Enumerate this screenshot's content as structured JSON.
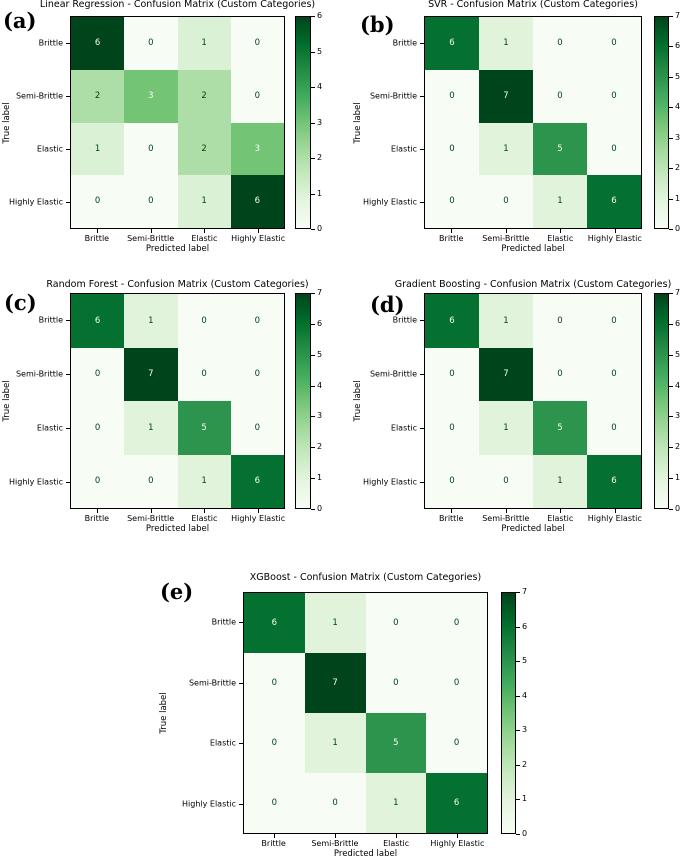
{
  "figure": {
    "description": "Confusion matrices for five regression/classification models with custom categories",
    "xlabel": "Predicted label",
    "ylabel": "True label",
    "categories": [
      "Brittle",
      "Semi-Brittle",
      "Elastic",
      "Highly Elastic"
    ]
  },
  "colors": {
    "colormap_name": "Greens",
    "colormap_anchors": [
      "#f7fcf5",
      "#e5f5e0",
      "#c7e9c0",
      "#a1d99b",
      "#74c476",
      "#41ab5d",
      "#238b45",
      "#006d2c",
      "#00441b"
    ],
    "cell_text_light": "#f7fcf5",
    "cell_text_dark": "#00441b",
    "axis_color": "#000000",
    "background": "#ffffff"
  },
  "chart_data": [
    {
      "type": "heatmap",
      "panel_letter": "(a)",
      "title": "Linear Regression - Confusion Matrix (Custom Categories)",
      "xlabel": "Predicted label",
      "ylabel": "True label",
      "categories": [
        "Brittle",
        "Semi-Brittle",
        "Elastic",
        "Highly Elastic"
      ],
      "matrix": [
        [
          6,
          0,
          1,
          0
        ],
        [
          2,
          3,
          2,
          0
        ],
        [
          1,
          0,
          2,
          3
        ],
        [
          0,
          0,
          1,
          6
        ]
      ],
      "vmin": 0,
      "vmax": 6,
      "colorbar_ticks": [
        0,
        1,
        2,
        3,
        4,
        5,
        6
      ]
    },
    {
      "type": "heatmap",
      "panel_letter": "(b)",
      "title": "SVR - Confusion Matrix (Custom Categories)",
      "xlabel": "Predicted label",
      "ylabel": "True label",
      "categories": [
        "Brittle",
        "Semi-Brittle",
        "Elastic",
        "Highly Elastic"
      ],
      "matrix": [
        [
          6,
          1,
          0,
          0
        ],
        [
          0,
          7,
          0,
          0
        ],
        [
          0,
          1,
          5,
          0
        ],
        [
          0,
          0,
          1,
          6
        ]
      ],
      "vmin": 0,
      "vmax": 7,
      "colorbar_ticks": [
        0,
        1,
        2,
        3,
        4,
        5,
        6,
        7
      ]
    },
    {
      "type": "heatmap",
      "panel_letter": "(c)",
      "title": "Random Forest - Confusion Matrix (Custom Categories)",
      "xlabel": "Predicted label",
      "ylabel": "True label",
      "categories": [
        "Brittle",
        "Semi-Brittle",
        "Elastic",
        "Highly Elastic"
      ],
      "matrix": [
        [
          6,
          1,
          0,
          0
        ],
        [
          0,
          7,
          0,
          0
        ],
        [
          0,
          1,
          5,
          0
        ],
        [
          0,
          0,
          1,
          6
        ]
      ],
      "vmin": 0,
      "vmax": 7,
      "colorbar_ticks": [
        0,
        1,
        2,
        3,
        4,
        5,
        6,
        7
      ]
    },
    {
      "type": "heatmap",
      "panel_letter": "(d)",
      "title": "Gradient Boosting - Confusion Matrix (Custom Categories)",
      "xlabel": "Predicted label",
      "ylabel": "True label",
      "categories": [
        "Brittle",
        "Semi-Brittle",
        "Elastic",
        "Highly Elastic"
      ],
      "matrix": [
        [
          6,
          1,
          0,
          0
        ],
        [
          0,
          7,
          0,
          0
        ],
        [
          0,
          1,
          5,
          0
        ],
        [
          0,
          0,
          1,
          6
        ]
      ],
      "vmin": 0,
      "vmax": 7,
      "colorbar_ticks": [
        0,
        1,
        2,
        3,
        4,
        5,
        6,
        7
      ]
    },
    {
      "type": "heatmap",
      "panel_letter": "(e)",
      "title": "XGBoost - Confusion Matrix (Custom Categories)",
      "xlabel": "Predicted label",
      "ylabel": "True label",
      "categories": [
        "Brittle",
        "Semi-Brittle",
        "Elastic",
        "Highly Elastic"
      ],
      "matrix": [
        [
          6,
          1,
          0,
          0
        ],
        [
          0,
          7,
          0,
          0
        ],
        [
          0,
          1,
          5,
          0
        ],
        [
          0,
          0,
          1,
          6
        ]
      ],
      "vmin": 0,
      "vmax": 7,
      "colorbar_ticks": [
        0,
        1,
        2,
        3,
        4,
        5,
        6,
        7
      ]
    }
  ]
}
